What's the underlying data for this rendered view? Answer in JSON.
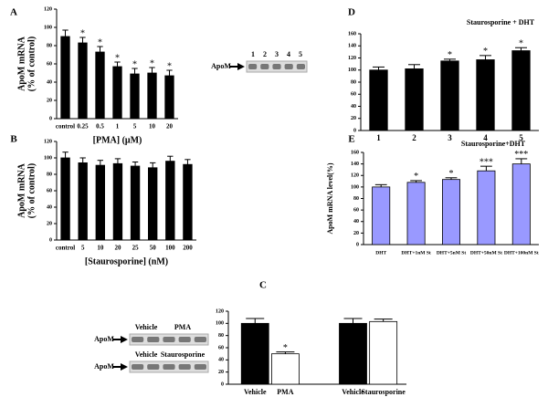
{
  "chart_data": [
    {
      "type": "bar",
      "panel": "A",
      "ylabel": [
        "ApoM mRNA",
        "(% of control)"
      ],
      "xlabel": "[PMA] (μM)",
      "categories": [
        "control",
        "0.25",
        "0.5",
        "1",
        "5",
        "10",
        "20"
      ],
      "values": [
        90,
        83,
        73,
        57,
        49,
        50,
        47
      ],
      "errors": [
        7,
        6,
        6,
        5,
        6,
        6,
        6
      ],
      "annotations": [
        null,
        "*",
        "*",
        "*",
        "*",
        "*",
        "*"
      ],
      "color": "#000000",
      "ylim": [
        0,
        120
      ],
      "yticks": [
        0,
        20,
        40,
        60,
        80,
        100,
        120
      ]
    },
    {
      "type": "bar",
      "panel": "B",
      "ylabel": [
        "ApoM mRNA",
        "(% of control)"
      ],
      "xlabel": "[Staurosporine] (nM)",
      "categories": [
        "control",
        "5",
        "10",
        "20",
        "25",
        "50",
        "100",
        "200"
      ],
      "values": [
        100,
        94,
        91,
        93,
        90,
        88,
        96,
        92
      ],
      "errors": [
        7,
        6,
        6,
        6,
        5,
        6,
        6,
        6
      ],
      "color": "#000000",
      "ylim": [
        0,
        120
      ],
      "yticks": [
        0,
        20,
        40,
        60,
        80,
        100,
        120
      ]
    },
    {
      "type": "bar",
      "panel": "D",
      "title": "Staurosporine + DHT",
      "categories": [
        "1",
        "2",
        "3",
        "4",
        "5"
      ],
      "values": [
        100,
        102,
        115,
        117,
        132
      ],
      "errors": [
        5,
        7,
        3,
        7,
        5
      ],
      "annotations": [
        null,
        null,
        "*",
        "*",
        "*"
      ],
      "color": "#000000",
      "ylim": [
        0,
        160
      ],
      "yticks": [
        0,
        20,
        40,
        60,
        80,
        100,
        120,
        140,
        160
      ],
      "blot": {
        "label": "ApoM",
        "lanes": [
          "1",
          "2",
          "3",
          "4",
          "5"
        ]
      }
    },
    {
      "type": "bar",
      "panel": "E",
      "title": "Staurosporine+DHT",
      "ylabel": [
        "ApoM mRNA level(%)"
      ],
      "categories": [
        "DHT",
        "DHT+1nM St",
        "DHT+5nM St",
        "DHT+50nM St",
        "DHT+100nM St"
      ],
      "values": [
        100,
        108,
        113,
        128,
        140
      ],
      "errors": [
        4,
        3,
        3,
        8,
        9
      ],
      "annotations": [
        null,
        "*",
        "*",
        "***",
        "***"
      ],
      "color": "#9999ff",
      "ylim": [
        0,
        160
      ],
      "yticks": [
        0,
        20,
        40,
        60,
        80,
        100,
        120,
        140,
        160
      ]
    },
    {
      "type": "bar",
      "panel": "C",
      "categories": [
        "Vehicle",
        "PMA",
        "Vehicle",
        "Staurosporine"
      ],
      "values": [
        100,
        50,
        100,
        103
      ],
      "errors": [
        8,
        3,
        8,
        4
      ],
      "annotations": [
        null,
        "*",
        null,
        null
      ],
      "colors": [
        "#000000",
        "#ffffff",
        "#000000",
        "#ffffff"
      ],
      "ylim": [
        0,
        120
      ],
      "yticks": [
        0,
        20,
        40,
        60,
        80,
        100,
        120
      ],
      "blots": [
        {
          "label": "ApoM",
          "lanes": [
            "Vehicle",
            "PMA"
          ]
        },
        {
          "label": "ApoM",
          "lanes": [
            "Vehicle",
            "Staurosporine"
          ]
        }
      ]
    }
  ]
}
